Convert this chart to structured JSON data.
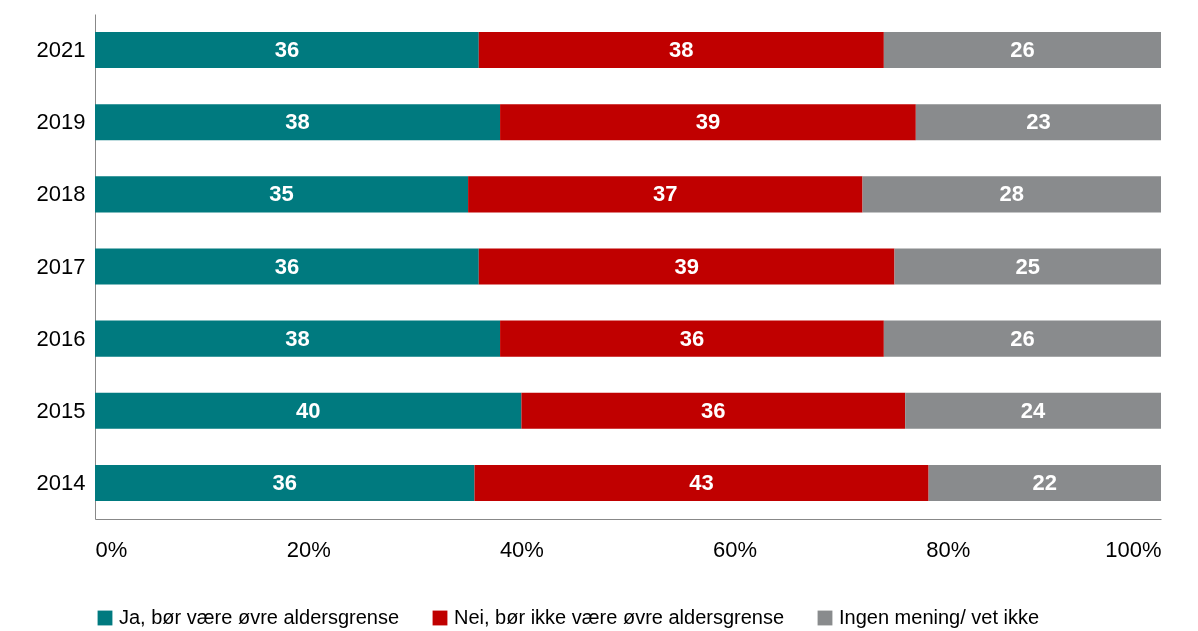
{
  "chart_data": {
    "type": "bar",
    "orientation": "horizontal",
    "stacked": true,
    "categories": [
      "2021",
      "2019",
      "2018",
      "2017",
      "2016",
      "2015",
      "2014"
    ],
    "series": [
      {
        "name": "Ja, bør være øvre aldersgrense",
        "color": "#007a7f",
        "values": [
          36,
          38,
          35,
          36,
          38,
          40,
          35.6
        ],
        "value_labels": [
          "36",
          "38",
          "35",
          "36",
          "38",
          "40",
          "36"
        ]
      },
      {
        "name": "Nei, bør ikke være øvre aldersgrense",
        "color": "#c00000",
        "values": [
          38,
          39,
          37,
          39,
          36,
          36,
          42.6
        ],
        "value_labels": [
          "38",
          "39",
          "37",
          "39",
          "36",
          "36",
          "43"
        ]
      },
      {
        "name": "Ingen mening/ vet ikke",
        "color": "#898b8d",
        "values": [
          26,
          23,
          28,
          25,
          26,
          24,
          21.8
        ],
        "value_labels": [
          "26",
          "23",
          "28",
          "25",
          "26",
          "24",
          "22"
        ]
      }
    ],
    "xlim": [
      0,
      100
    ],
    "xticks": [
      {
        "value": 0,
        "label": "0%"
      },
      {
        "value": 20,
        "label": "20%"
      },
      {
        "value": 40,
        "label": "40%"
      },
      {
        "value": 60,
        "label": "60%"
      },
      {
        "value": 80,
        "label": "80%"
      },
      {
        "value": 100,
        "label": "100%"
      }
    ],
    "grid": false,
    "legend": "bottom"
  }
}
